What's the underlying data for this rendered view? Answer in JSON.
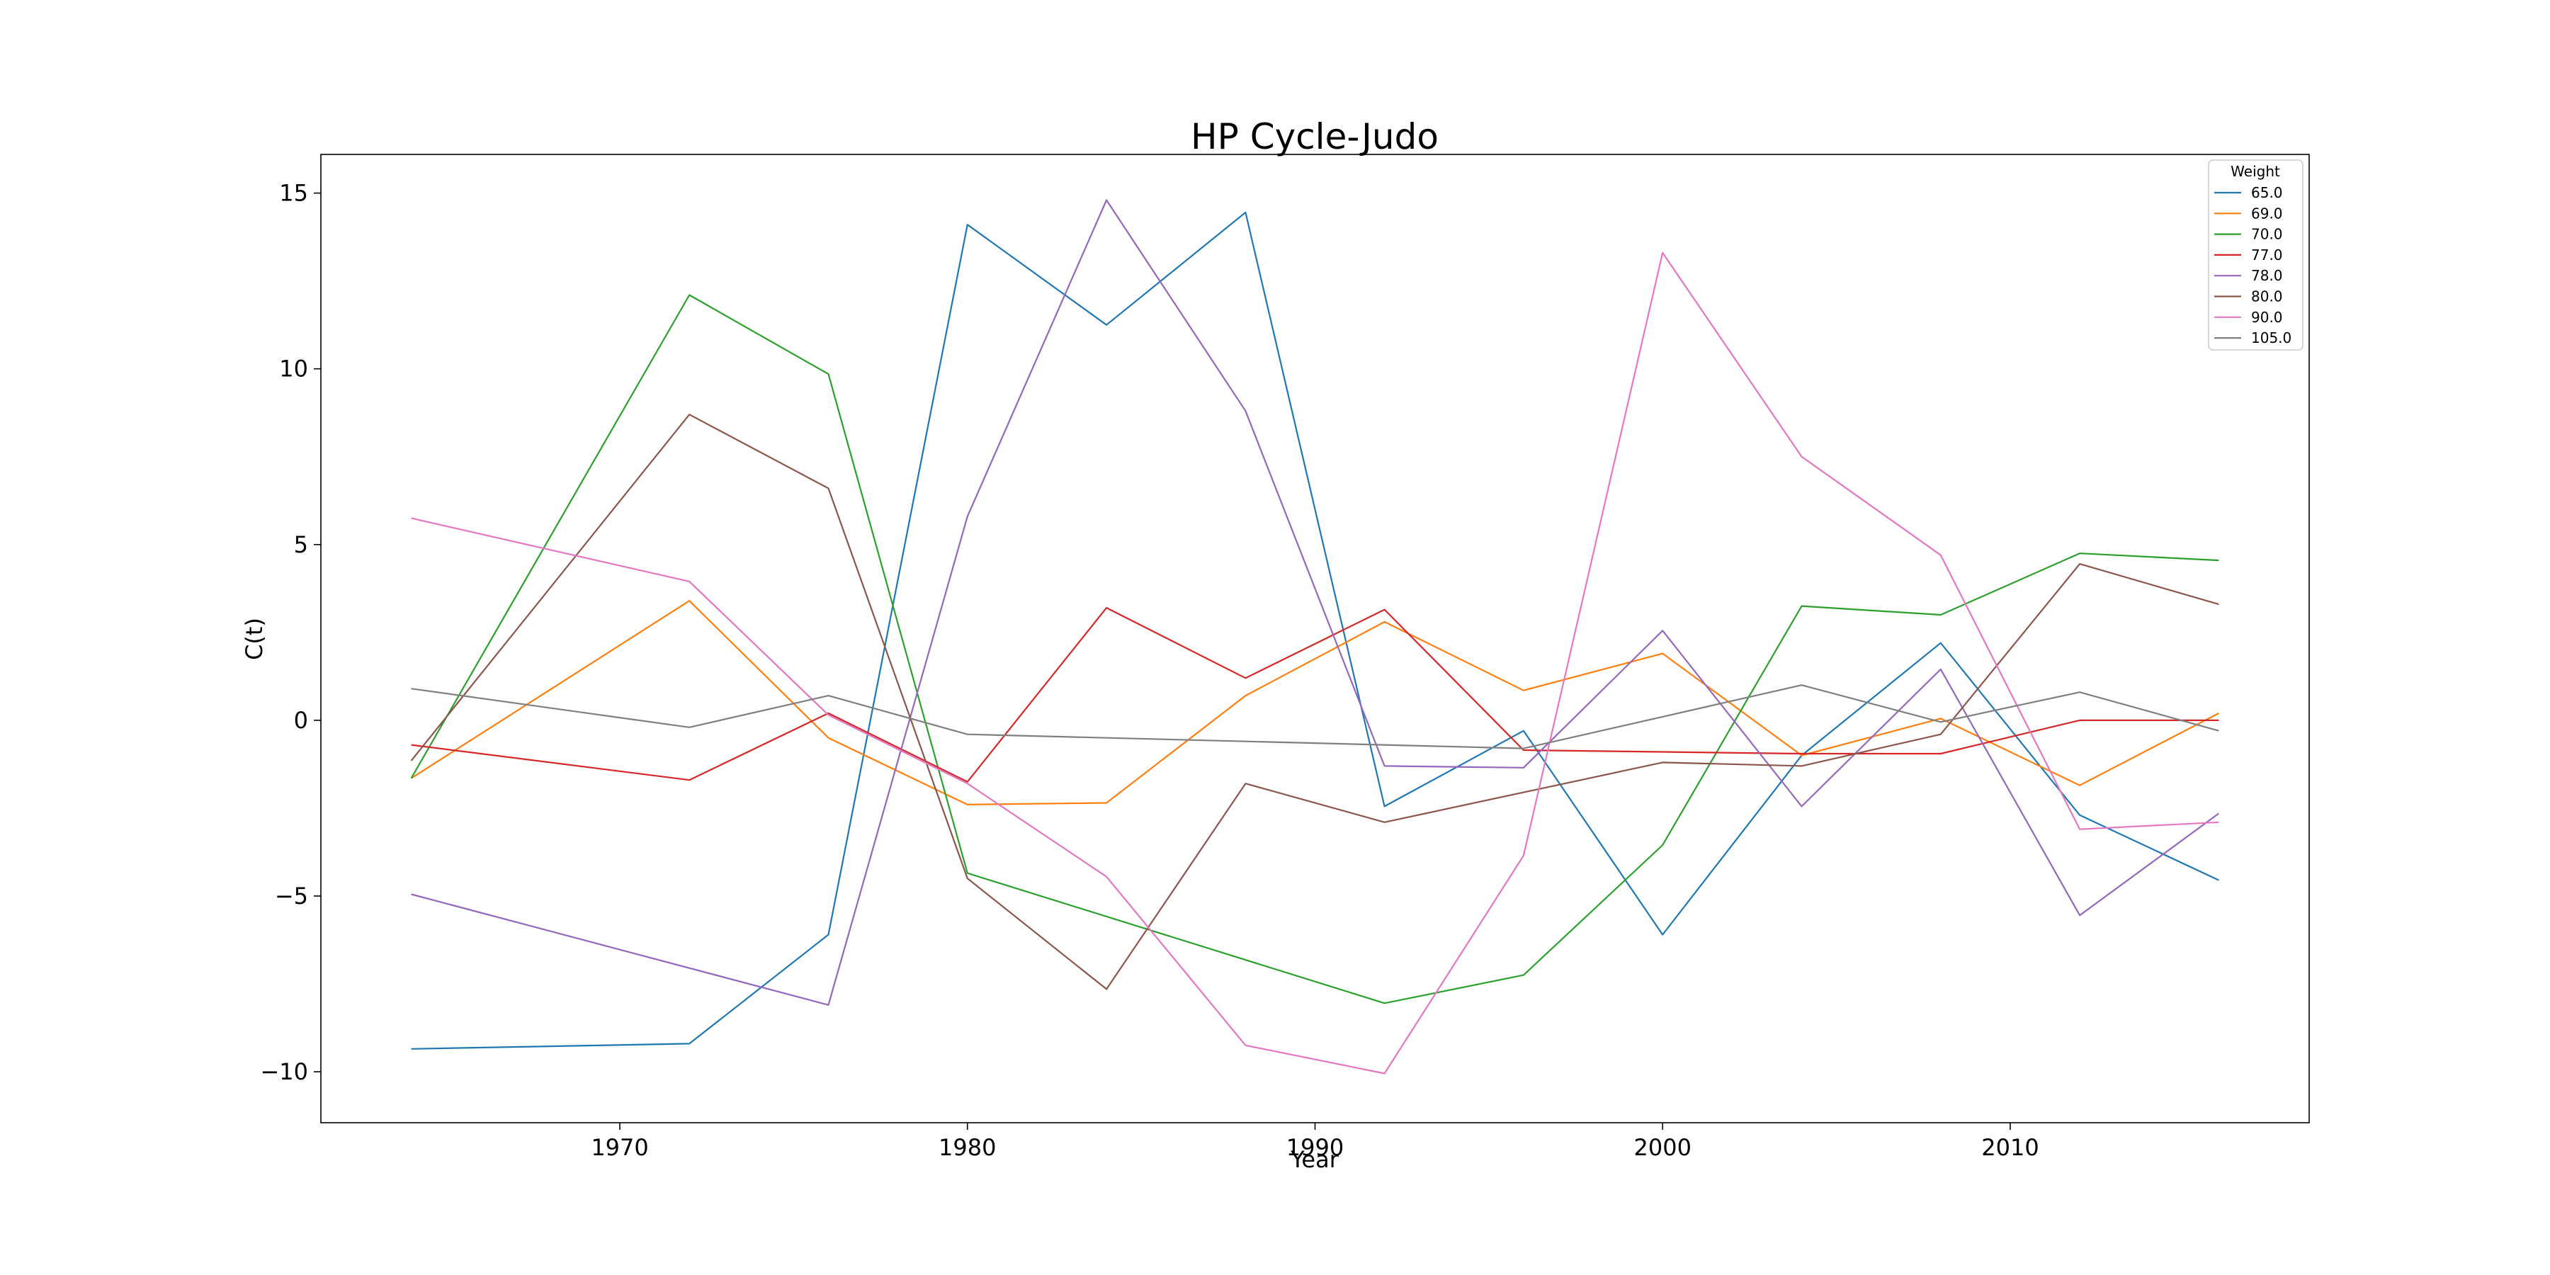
{
  "chart_data": {
    "type": "line",
    "title": "HP Cycle-Judo",
    "xlabel": "Year",
    "ylabel": "C(t)",
    "xlim": [
      1961.4,
      2018.6
    ],
    "ylim": [
      -11.45,
      16.1
    ],
    "xticks": [
      1970,
      1980,
      1990,
      2000,
      2010
    ],
    "yticks": [
      -10,
      -5,
      0,
      5,
      10,
      15
    ],
    "grid": false,
    "legend": {
      "title": "Weight",
      "position": "top-right"
    },
    "x": [
      1964,
      1972,
      1976,
      1980,
      1984,
      1988,
      1992,
      1996,
      2000,
      2004,
      2008,
      2012,
      2016
    ],
    "series": [
      {
        "name": "65.0",
        "color": "#1f77b4",
        "values": [
          -9.35,
          -9.2,
          -6.1,
          14.1,
          11.25,
          14.45,
          -2.45,
          -0.3,
          -6.1,
          -1.0,
          2.2,
          -2.7,
          -4.55
        ]
      },
      {
        "name": "69.0",
        "color": "#ff7f0e",
        "values": [
          -1.65,
          3.4,
          -0.5,
          -2.4,
          -2.35,
          0.7,
          2.8,
          0.85,
          1.9,
          -1.0,
          0.05,
          -1.85,
          0.2
        ]
      },
      {
        "name": "70.0",
        "color": "#2ca02c",
        "values": [
          -1.65,
          12.1,
          9.85,
          -4.35,
          null,
          null,
          -8.05,
          -7.25,
          -3.55,
          3.25,
          3.0,
          4.75,
          4.55
        ]
      },
      {
        "name": "77.0",
        "color": "#d62728",
        "values": [
          -0.7,
          -1.7,
          0.2,
          -1.75,
          3.2,
          1.2,
          3.15,
          -0.85,
          -0.9,
          -0.95,
          -0.95,
          0.0,
          0.0
        ]
      },
      {
        "name": "78.0",
        "color": "#9467bd",
        "values": [
          -4.95,
          null,
          -8.1,
          5.8,
          14.8,
          8.8,
          -1.3,
          -1.35,
          2.55,
          -2.45,
          1.45,
          -5.55,
          -2.65
        ]
      },
      {
        "name": "80.0",
        "color": "#8c564b",
        "values": [
          -1.15,
          8.7,
          6.6,
          -4.5,
          -7.65,
          -1.8,
          -2.9,
          null,
          -1.2,
          -1.3,
          -0.4,
          4.45,
          3.3
        ]
      },
      {
        "name": "90.0",
        "color": "#e377c2",
        "values": [
          5.75,
          3.95,
          0.15,
          -1.8,
          -4.45,
          -9.25,
          -10.05,
          -3.85,
          13.3,
          7.5,
          4.7,
          -3.1,
          -2.9
        ]
      },
      {
        "name": "105.0",
        "color": "#7f7f7f",
        "values": [
          0.9,
          -0.2,
          0.7,
          -0.4,
          null,
          null,
          null,
          -0.8,
          0.1,
          1.0,
          -0.05,
          0.8,
          -0.3
        ]
      }
    ]
  }
}
